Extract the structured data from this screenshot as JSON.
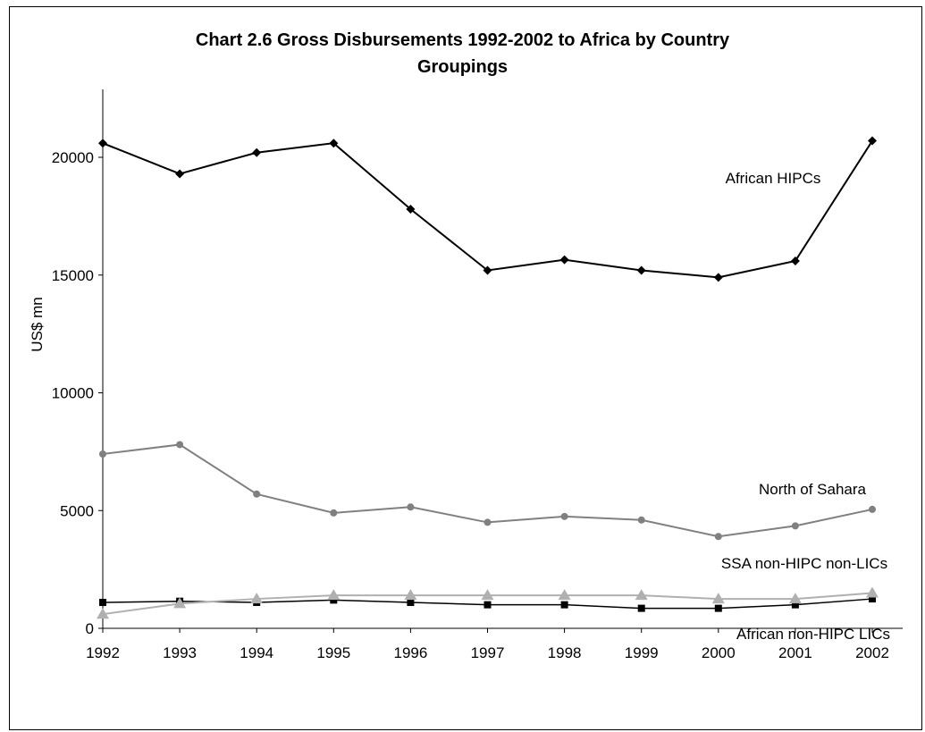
{
  "chart_data": {
    "type": "line",
    "title_line1": "Chart 2.6 Gross Disbursements 1992-2002 to Africa by Country",
    "title_line2": "Groupings",
    "ylabel": "US$ mn",
    "xlabel": "",
    "ylim": [
      0,
      20000
    ],
    "yticks": [
      0,
      5000,
      10000,
      15000,
      20000
    ],
    "categories": [
      "1992",
      "1993",
      "1994",
      "1995",
      "1996",
      "1997",
      "1998",
      "1999",
      "2000",
      "2001",
      "2002"
    ],
    "grid": false,
    "series": [
      {
        "name": "African HIPCs",
        "color": "#000000",
        "marker": "diamond",
        "values": [
          20600,
          19300,
          20200,
          20600,
          17800,
          15200,
          15650,
          15200,
          14900,
          15600,
          20700
        ]
      },
      {
        "name": "North of Sahara",
        "color": "#808080",
        "marker": "circle",
        "values": [
          7400,
          7800,
          5700,
          4900,
          5150,
          4500,
          4750,
          4600,
          3900,
          4350,
          5050
        ]
      },
      {
        "name": "SSA non-HIPC non-LICs",
        "color": "#000000",
        "marker": "square",
        "values": [
          1100,
          1150,
          1100,
          1200,
          1100,
          1000,
          1000,
          850,
          850,
          1000,
          1250
        ]
      },
      {
        "name": "African non-HIPC LICs",
        "color": "#b0b0b0",
        "marker": "triangle",
        "values": [
          600,
          1050,
          1250,
          1400,
          1400,
          1400,
          1400,
          1400,
          1250,
          1250,
          1500
        ]
      }
    ]
  }
}
